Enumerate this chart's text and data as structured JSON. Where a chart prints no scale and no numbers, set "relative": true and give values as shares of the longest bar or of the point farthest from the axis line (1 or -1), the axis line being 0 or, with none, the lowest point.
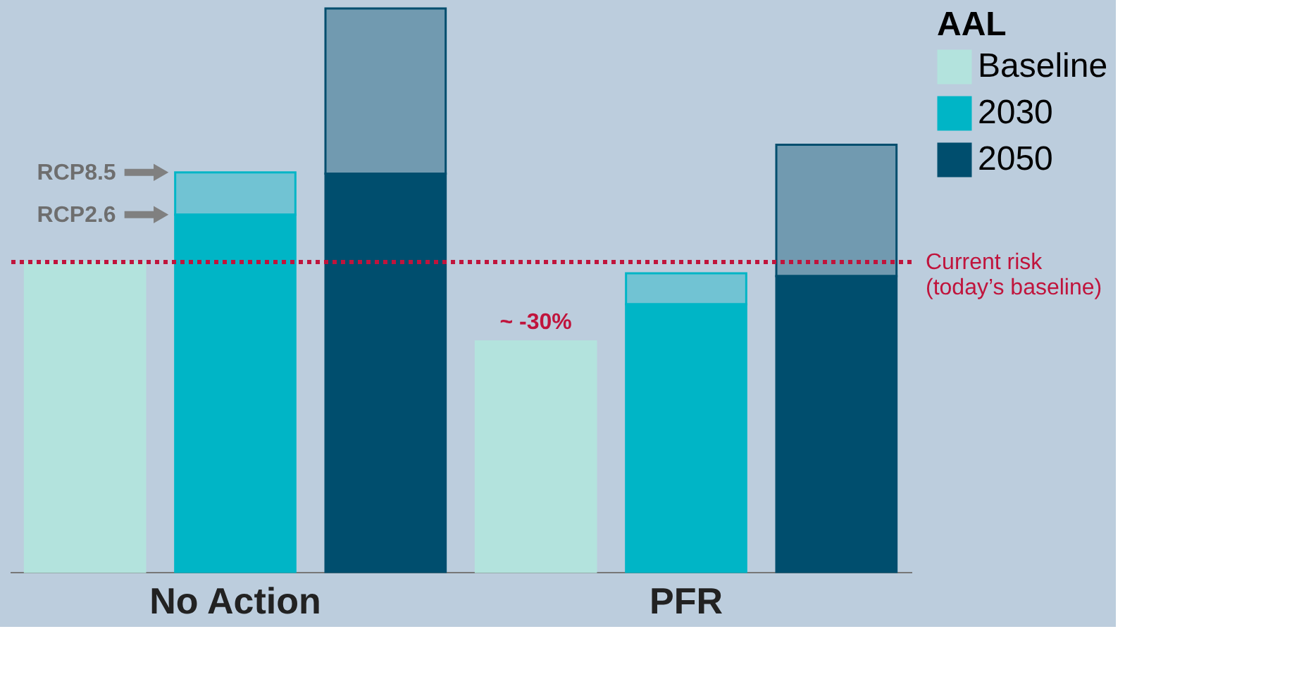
{
  "chart_data": {
    "type": "bar",
    "relative": true,
    "stacked": true,
    "categories": [
      null,
      "No Action",
      null,
      null,
      "PFR",
      null
    ],
    "legend_title": "AAL",
    "legend": "top right",
    "series": [
      {
        "name": "Baseline",
        "color": "#b3e3dd",
        "values": [
          0.55,
          null,
          null,
          0.409,
          null,
          null
        ]
      },
      {
        "name": "2030",
        "color": "#00b5c6",
        "values": [
          null,
          0.634,
          null,
          null,
          0.475,
          null
        ]
      },
      {
        "name": "2050",
        "color": "#004e6e",
        "values": [
          null,
          null,
          0.707,
          null,
          null,
          0.525
        ]
      },
      {
        "color": "#00b5c6",
        "values": [
          null,
          0.075,
          null,
          null,
          0.055,
          null
        ]
      },
      {
        "color": "#004e6e",
        "values": [
          null,
          null,
          0.293,
          null,
          null,
          0.233
        ]
      }
    ],
    "ref_lines": [
      {
        "axis": "y",
        "value": 0.55,
        "label": "Current risk\n(today’s baseline)",
        "color": "#c0143c",
        "line_style": "dotted"
      }
    ],
    "annotations": [
      "RCP8.5",
      "RCP2.6",
      "~ -30%"
    ]
  }
}
